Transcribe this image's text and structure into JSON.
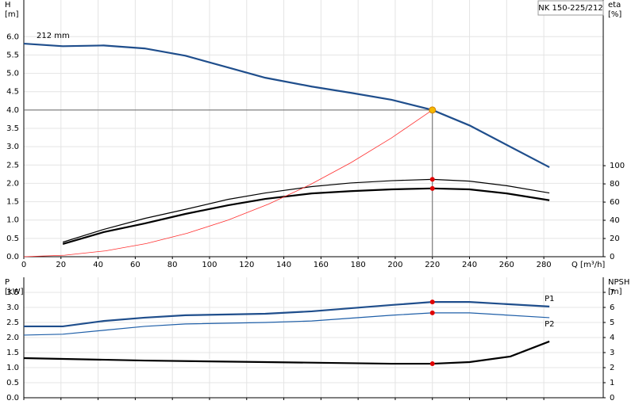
{
  "chart_data": [
    {
      "type": "line",
      "title": "NK 150-225/212",
      "ylabel": "H",
      "yunit": "[m]",
      "y2label": "eta",
      "y2unit": "[%]",
      "xlabel": "Q [m³/h]",
      "xlim": [
        0,
        312
      ],
      "xticks": [
        0,
        20,
        40,
        60,
        80,
        100,
        120,
        140,
        160,
        180,
        200,
        220,
        240,
        260,
        280
      ],
      "ylim": [
        0,
        7
      ],
      "yticks": [
        {
          "value": 0,
          "label": "0.0"
        },
        {
          "value": 0.5,
          "label": "0.5"
        },
        {
          "value": 1,
          "label": "1.0"
        },
        {
          "value": 1.5,
          "label": "1.5"
        },
        {
          "value": 2,
          "label": "2.0"
        },
        {
          "value": 2.5,
          "label": "2.5"
        },
        {
          "value": 3,
          "label": "3.0"
        },
        {
          "value": 3.5,
          "label": "3.5"
        },
        {
          "value": 4,
          "label": "4.0"
        },
        {
          "value": 4.5,
          "label": "4.5"
        },
        {
          "value": 5,
          "label": "5.0"
        },
        {
          "value": 5.5,
          "label": "5.5"
        },
        {
          "value": 6,
          "label": "6.0"
        }
      ],
      "y2lim": [
        0,
        282
      ],
      "y2ticks": [
        0,
        20,
        40,
        60,
        80,
        100
      ],
      "grid": true,
      "show_xtick_labels": true,
      "series": [
        {
          "name": "212 mm",
          "color": "#1f4e8c",
          "linestyle": "thick",
          "x": [
            0,
            21,
            43,
            65,
            87,
            110,
            130,
            155,
            176,
            198,
            220,
            240,
            283
          ],
          "values": [
            5.81,
            5.74,
            5.76,
            5.68,
            5.48,
            5.16,
            4.88,
            4.64,
            4.47,
            4.28,
            4.0,
            3.58,
            2.44
          ]
        },
        {
          "color": "#000000",
          "linestyle": "thin",
          "axis": "y2",
          "x": [
            21,
            43,
            65,
            87,
            110,
            130,
            155,
            176,
            198,
            220,
            240,
            260,
            283
          ],
          "values": [
            16,
            30,
            42,
            52,
            63,
            70,
            77,
            81,
            83.5,
            85,
            83,
            78,
            70
          ]
        },
        {
          "color": "#000000",
          "linestyle": "thick",
          "axis": "y2",
          "x": [
            21,
            43,
            65,
            87,
            110,
            130,
            155,
            176,
            198,
            220,
            240,
            260,
            283
          ],
          "values": [
            14,
            27,
            36.5,
            47,
            56.5,
            63.5,
            69.5,
            72,
            74,
            75,
            74,
            69.5,
            62
          ]
        },
        {
          "color": "#ff3030",
          "linestyle": "hair",
          "x": [
            0,
            22,
            44,
            66,
            88,
            110,
            132,
            154,
            176,
            198,
            220
          ],
          "values": [
            0,
            0.04,
            0.16,
            0.36,
            0.64,
            1.0,
            1.44,
            1.96,
            2.56,
            3.24,
            4.0
          ]
        }
      ],
      "markers": [
        {
          "x": 220,
          "y": 4.0,
          "color": "#f5b800",
          "guides": true
        },
        {
          "x": 220,
          "y": 85,
          "axis": "y2",
          "color": "#e00000"
        },
        {
          "x": 220,
          "y": 75,
          "axis": "y2",
          "color": "#e00000"
        }
      ]
    },
    {
      "type": "line",
      "ylabel": "P",
      "yunit": "[kW]",
      "y2label": "NPSH",
      "y2unit": "[m]",
      "xlim": [
        0,
        312
      ],
      "xticks": [
        0,
        20,
        40,
        60,
        80,
        100,
        120,
        140,
        160,
        180,
        200,
        220,
        240,
        260,
        280
      ],
      "ylim": [
        0,
        4
      ],
      "yticks": [
        {
          "value": 0,
          "label": "0.0"
        },
        {
          "value": 0.5,
          "label": "0.5"
        },
        {
          "value": 1,
          "label": "1.0"
        },
        {
          "value": 1.5,
          "label": "1.5"
        },
        {
          "value": 2,
          "label": "2.0"
        },
        {
          "value": 2.5,
          "label": "2.5"
        },
        {
          "value": 3,
          "label": "3.0"
        },
        {
          "value": 3.5,
          "label": "3.5"
        }
      ],
      "y2lim": [
        0,
        8
      ],
      "y2ticks": [
        0,
        1,
        2,
        3,
        4,
        5,
        6,
        7
      ],
      "grid": true,
      "show_xtick_labels": false,
      "series": [
        {
          "name": "P1",
          "color": "#1f4e8c",
          "linestyle": "thick",
          "x": [
            0,
            21,
            43,
            65,
            87,
            130,
            155,
            198,
            220,
            240,
            283
          ],
          "values": [
            2.37,
            2.37,
            2.55,
            2.66,
            2.74,
            2.79,
            2.87,
            3.08,
            3.18,
            3.18,
            3.03
          ]
        },
        {
          "name": "P2",
          "color": "#1f5fa8",
          "linestyle": "thin",
          "x": [
            0,
            21,
            43,
            65,
            87,
            130,
            155,
            198,
            220,
            240,
            283
          ],
          "values": [
            2.08,
            2.11,
            2.24,
            2.37,
            2.45,
            2.5,
            2.55,
            2.74,
            2.82,
            2.82,
            2.66
          ]
        },
        {
          "color": "#000000",
          "linestyle": "thick",
          "axis": "y2",
          "x": [
            0,
            21,
            65,
            130,
            198,
            220,
            240,
            262,
            283
          ],
          "values": [
            2.63,
            2.58,
            2.47,
            2.37,
            2.26,
            2.26,
            2.37,
            2.74,
            3.74
          ]
        }
      ],
      "markers": [
        {
          "x": 220,
          "y": 3.18,
          "color": "#e00000"
        },
        {
          "x": 220,
          "y": 2.82,
          "color": "#e00000"
        },
        {
          "x": 220,
          "y": 2.26,
          "axis": "y2",
          "color": "#e00000"
        }
      ]
    }
  ]
}
